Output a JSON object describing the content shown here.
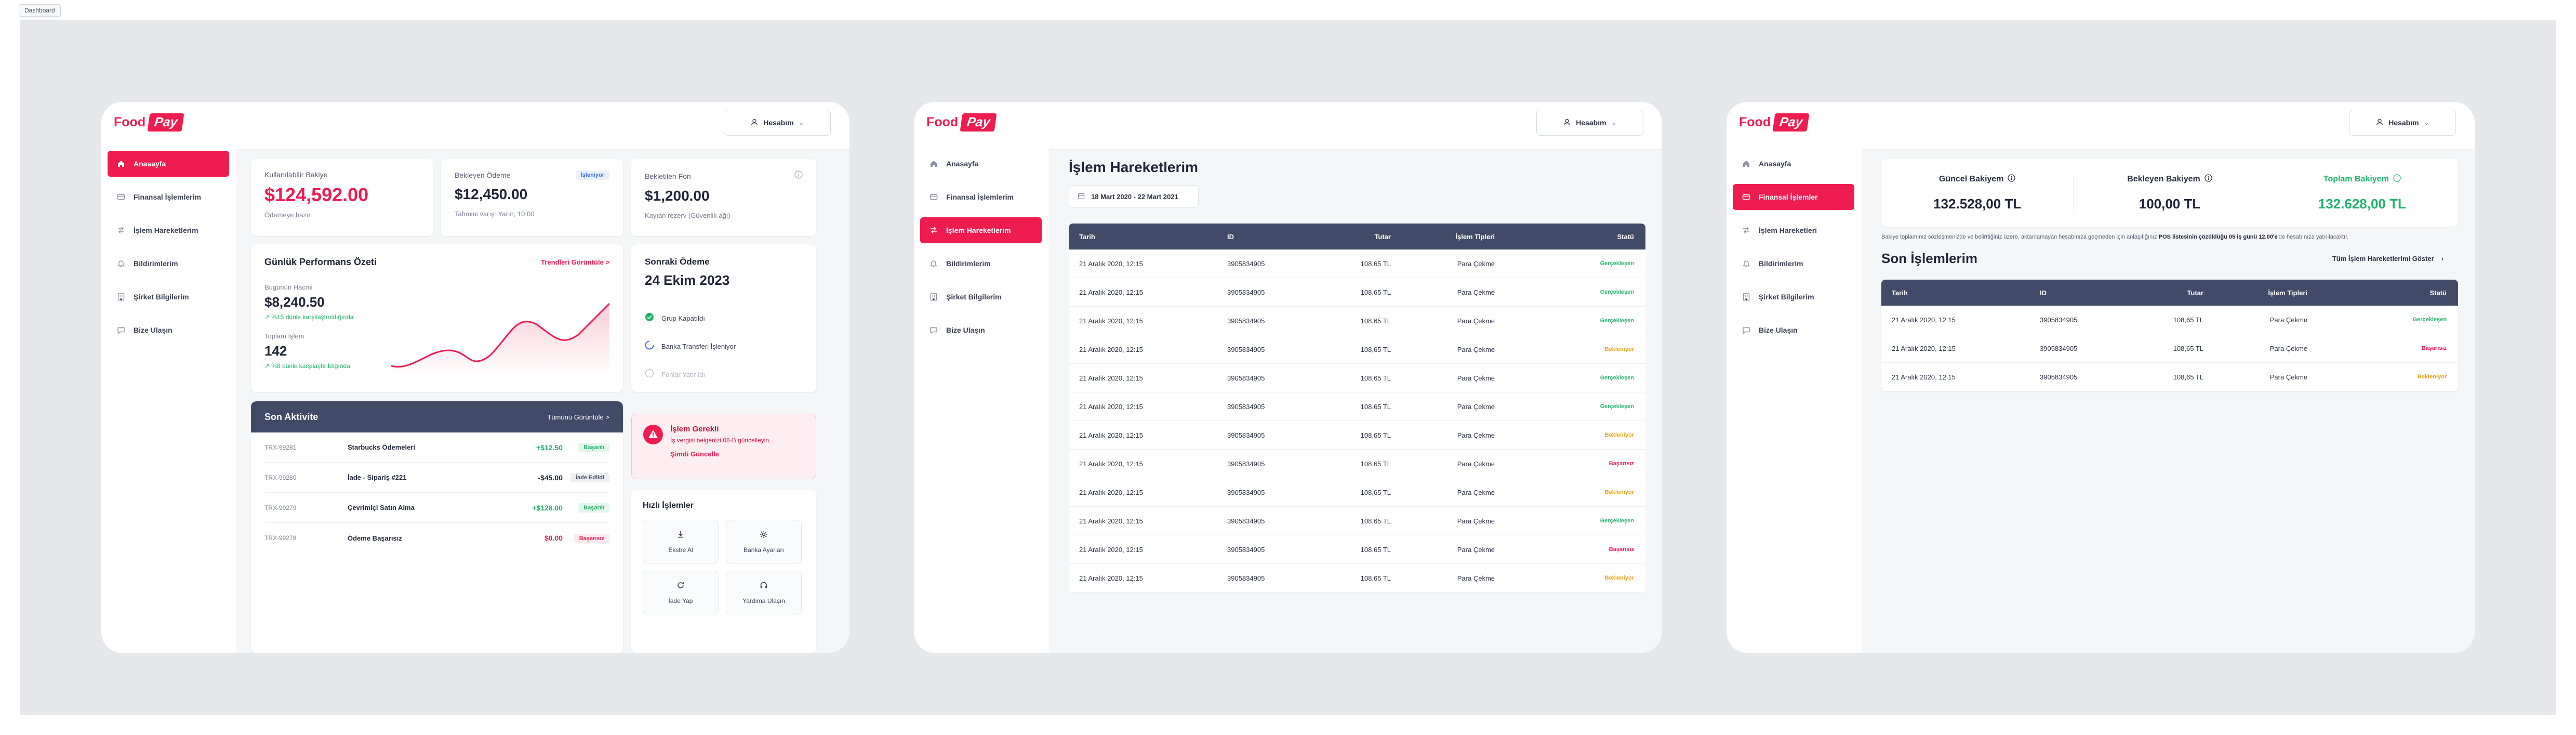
{
  "top_tag": "Dashboard",
  "brand": {
    "food": "Food",
    "pay": "Pay"
  },
  "account_label": "Hesabım",
  "frames": [
    {
      "nav": [
        {
          "label": "Anasayfa",
          "icon": "home-icon",
          "active": true
        },
        {
          "label": "Finansal İşlemlerim",
          "icon": "finance-icon",
          "active": false
        },
        {
          "label": "İşlem Hareketlerim",
          "icon": "transfer-icon",
          "active": false
        },
        {
          "label": "Bildirimlerim",
          "icon": "bell-icon",
          "active": false
        },
        {
          "label": "Şirket Bilgilerim",
          "icon": "building-icon",
          "active": false
        },
        {
          "label": "Bize Ulaşın",
          "icon": "chat-icon",
          "active": false
        }
      ]
    },
    {
      "nav": [
        {
          "label": "Anasayfa",
          "icon": "home-icon",
          "active": false
        },
        {
          "label": "Finansal İşlemlerim",
          "icon": "finance-icon",
          "active": false
        },
        {
          "label": "İşlem Hareketlerim",
          "icon": "transfer-icon",
          "active": true
        },
        {
          "label": "Bildirimlerim",
          "icon": "bell-icon",
          "active": false
        },
        {
          "label": "Şirket Bilgilerim",
          "icon": "building-icon",
          "active": false
        },
        {
          "label": "Bize Ulaşın",
          "icon": "chat-icon",
          "active": false
        }
      ]
    },
    {
      "nav": [
        {
          "label": "Anasayfa",
          "icon": "home-icon",
          "active": false
        },
        {
          "label": "Finansal İşlemler",
          "icon": "finance-icon",
          "active": true
        },
        {
          "label": "İşlem Hareketleri",
          "icon": "transfer-icon",
          "active": false
        },
        {
          "label": "Bildirimlerim",
          "icon": "bell-icon",
          "active": false
        },
        {
          "label": "Şirket Bilgilerim",
          "icon": "building-icon",
          "active": false
        },
        {
          "label": "Bize Ulaşın",
          "icon": "chat-icon",
          "active": false
        }
      ]
    }
  ],
  "dashboard": {
    "balance": {
      "label": "Kullanılabilir Bakiye",
      "value": "$124,592.00",
      "note": "Ödemeye hazır"
    },
    "pending": {
      "label": "Bekleyen Ödeme",
      "badge": "İşleniyor",
      "value": "$12,450.00",
      "note": "Tahmini varış: Yarın, 10:00"
    },
    "blocked": {
      "label": "Bekletilen Fon",
      "value": "$1,200.00",
      "note": "Kayıan rezerv (Güvenlik ağı)"
    },
    "performance": {
      "title": "Günlük Performans Özeti",
      "link": "Trendleri Görüntüle >",
      "volume_label": "Bugünün Hacmi",
      "volume_value": "$8,240.50",
      "volume_change": "↗ %15 dünle karşılaştırıldığında",
      "count_label": "Toplam İşlem",
      "count_value": "142",
      "count_change": "↗ %8 dünle karşılaştırıldığında"
    },
    "next_payment": {
      "title": "Sonraki Ödeme",
      "date": "24 Ekim 2023",
      "steps": [
        {
          "label": "Grup Kapatıldı",
          "state": "done"
        },
        {
          "label": "Banka Transferi İşleniyor",
          "state": "active"
        },
        {
          "label": "Fonlar Yatırıldı",
          "state": "todo"
        }
      ]
    },
    "activity": {
      "title": "Son Aktivite",
      "link": "Tümünü Görüntüle >",
      "rows": [
        {
          "id": "TRX-99281",
          "name": "Starbucks Ödemeleri",
          "amount": "+$12.50",
          "status": "Başarılı",
          "kind": "ok"
        },
        {
          "id": "TRX-99280",
          "name": "İade - Sipariş #221",
          "amount": "-$45.00",
          "status": "İade Edildi",
          "kind": "grey"
        },
        {
          "id": "TRX-99279",
          "name": "Çevrimiçi Satın Alma",
          "amount": "+$128.00",
          "status": "Başarılı",
          "kind": "ok"
        },
        {
          "id": "TRX-99278",
          "name": "Ödeme Başarısız",
          "amount": "$0.00",
          "status": "Başarısız",
          "kind": "fail"
        }
      ]
    },
    "alert": {
      "title": "İşlem Gerekli",
      "text": "İş vergisi belgenizi 08-B güncelleyin.",
      "link": "Şimdi Güncelle"
    },
    "quick": {
      "title": "Hızlı İşlemler",
      "items": [
        {
          "label": "Ekstre Al",
          "icon": "download-icon"
        },
        {
          "label": "Banka Ayarları",
          "icon": "gear-icon"
        },
        {
          "label": "İade Yap",
          "icon": "refresh-icon"
        },
        {
          "label": "Yardıma Ulaşın",
          "icon": "headset-icon"
        }
      ]
    }
  },
  "transactions": {
    "title": "İşlem Hareketlerim",
    "date_range": "18 Mart 2020 - 22 Mart 2021",
    "headers": [
      "Tarih",
      "ID",
      "Tutar",
      "İşlem Tipleri",
      "Statü"
    ],
    "rows": [
      {
        "date": "21 Aralık 2020, 12:15",
        "id": "3905834905",
        "amount": "108,65 TL",
        "type": "Para Çekme",
        "status": "Gerçekleşen",
        "kind": "green"
      },
      {
        "date": "21 Aralık 2020, 12:15",
        "id": "3905834905",
        "amount": "108,65 TL",
        "type": "Para Çekme",
        "status": "Gerçekleşen",
        "kind": "green"
      },
      {
        "date": "21 Aralık 2020, 12:15",
        "id": "3905834905",
        "amount": "108,65 TL",
        "type": "Para Çekme",
        "status": "Gerçekleşen",
        "kind": "green"
      },
      {
        "date": "21 Aralık 2020, 12:15",
        "id": "3905834905",
        "amount": "108,65 TL",
        "type": "Para Çekme",
        "status": "Bekleniyor",
        "kind": "amber"
      },
      {
        "date": "21 Aralık 2020, 12:15",
        "id": "3905834905",
        "amount": "108,65 TL",
        "type": "Para Çekme",
        "status": "Gerçekleşen",
        "kind": "green"
      },
      {
        "date": "21 Aralık 2020, 12:15",
        "id": "3905834905",
        "amount": "108,65 TL",
        "type": "Para Çekme",
        "status": "Gerçekleşen",
        "kind": "green"
      },
      {
        "date": "21 Aralık 2020, 12:15",
        "id": "3905834905",
        "amount": "108,65 TL",
        "type": "Para Çekme",
        "status": "Bekleniyor",
        "kind": "amber"
      },
      {
        "date": "21 Aralık 2020, 12:15",
        "id": "3905834905",
        "amount": "108,65 TL",
        "type": "Para Çekme",
        "status": "Başarısız",
        "kind": "red"
      },
      {
        "date": "21 Aralık 2020, 12:15",
        "id": "3905834905",
        "amount": "108,65 TL",
        "type": "Para Çekme",
        "status": "Bekleniyor",
        "kind": "amber"
      },
      {
        "date": "21 Aralık 2020, 12:15",
        "id": "3905834905",
        "amount": "108,65 TL",
        "type": "Para Çekme",
        "status": "Gerçekleşen",
        "kind": "green"
      },
      {
        "date": "21 Aralık 2020, 12:15",
        "id": "3905834905",
        "amount": "108,65 TL",
        "type": "Para Çekme",
        "status": "Başarısız",
        "kind": "red"
      },
      {
        "date": "21 Aralık 2020, 12:15",
        "id": "3905834905",
        "amount": "108,65 TL",
        "type": "Para Çekme",
        "status": "Bekleniyor",
        "kind": "amber"
      }
    ]
  },
  "finance": {
    "current": {
      "label": "Güncel Bakiyem",
      "value": "132.528,00 TL"
    },
    "waiting": {
      "label": "Bekleyen Bakiyem",
      "value": "100,00 TL"
    },
    "total": {
      "label": "Toplam Bakiyem",
      "value": "132.628,00 TL"
    },
    "info_pre": "Bakiye toplamınız sözleşmenizde ve belirttiğiniz üzere, aktarılamayan hesabınıza geçmeden için anlaşılığınız",
    "info_bold": "POS listesinin çözüldüğü 05 iş günü 12.00'e",
    "info_post": "'de hesabınıza yatırılacaktır.",
    "section_title": "Son İşlemlerim",
    "section_link": "Tüm İşlem Hareketlerimi Göster",
    "headers": [
      "Tarih",
      "ID",
      "Tutar",
      "İşlem Tipleri",
      "Statü"
    ],
    "rows": [
      {
        "date": "21 Aralık 2020, 12:15",
        "id": "3905834905",
        "amount": "108,65 TL",
        "type": "Para Çekme",
        "status": "Gerçekleşen",
        "kind": "green"
      },
      {
        "date": "21 Aralık 2020, 12:15",
        "id": "3905834905",
        "amount": "108,65 TL",
        "type": "Para Çekme",
        "status": "Başarısız",
        "kind": "red"
      },
      {
        "date": "21 Aralık 2020, 12:15",
        "id": "3905834905",
        "amount": "108,65 TL",
        "type": "Para Çekme",
        "status": "Bekleniyor",
        "kind": "amber"
      }
    ]
  },
  "colors": {
    "brand": "#ee1c4f",
    "header_bar": "#414a66",
    "success": "#1fb36a",
    "warning": "#e3a21a",
    "canvas": "#e5e7eb"
  }
}
